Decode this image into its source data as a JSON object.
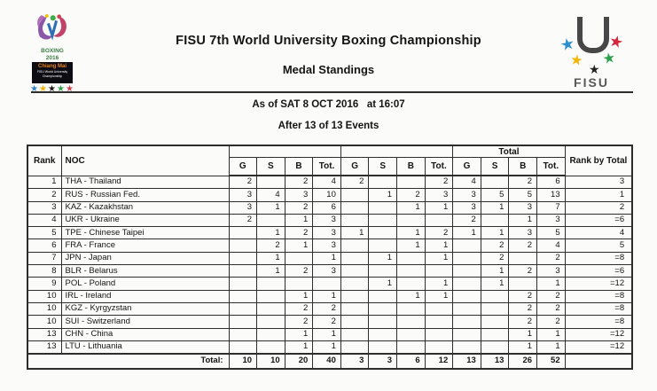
{
  "header": {
    "title": "FISU 7th World University Boxing Championship",
    "subtitle": "Medal Standings",
    "as_of": "As of SAT 8 OCT 2016   at 16:07",
    "after": "After 13 of 13 Events"
  },
  "boxing_logo": {
    "line1": "BOXING",
    "line2": "2016",
    "box_title": "Chiang Mai",
    "box_sub1": "FISU World University",
    "box_sub2": "Championship",
    "wordmark_color": "#3a7d44",
    "box_title_color": "#e8821e",
    "stars": [
      {
        "name": "blue",
        "glyph": "★",
        "color": "#2f7ec7"
      },
      {
        "name": "yellow",
        "glyph": "★",
        "color": "#f0b400"
      },
      {
        "name": "black",
        "glyph": "★",
        "color": "#1a1a1a"
      },
      {
        "name": "green",
        "glyph": "★",
        "color": "#2f9e4f"
      },
      {
        "name": "red",
        "glyph": "★",
        "color": "#d2404f"
      }
    ]
  },
  "fisu_logo": {
    "wordmark": "FISU",
    "stars": {
      "blue": {
        "glyph": "★",
        "color": "#2b8fd0"
      },
      "red": {
        "glyph": "★",
        "color": "#d6263e"
      },
      "yellow": {
        "glyph": "★",
        "color": "#f2b705"
      },
      "green": {
        "glyph": "★",
        "color": "#2aa24c"
      },
      "black": {
        "glyph": "★",
        "color": "#222222"
      }
    }
  },
  "table": {
    "col_headers": {
      "rank": "Rank",
      "noc": "NOC",
      "group1_label": "",
      "group2_label": "",
      "group3_label": "Total",
      "medal": [
        "G",
        "S",
        "B",
        "Tot."
      ],
      "rank_by_total": "Rank by Total"
    },
    "rows": [
      {
        "rank": "1",
        "noc": "THA - Thailand",
        "values": [
          "2",
          "",
          "2",
          "4",
          "2",
          "",
          "",
          "2",
          "4",
          "",
          "2",
          "6"
        ],
        "rank_by_total": "3"
      },
      {
        "rank": "2",
        "noc": "RUS - Russian Fed.",
        "values": [
          "3",
          "4",
          "3",
          "10",
          "",
          "1",
          "2",
          "3",
          "3",
          "5",
          "5",
          "13"
        ],
        "rank_by_total": "1"
      },
      {
        "rank": "3",
        "noc": "KAZ - Kazakhstan",
        "values": [
          "3",
          "1",
          "2",
          "6",
          "",
          "",
          "1",
          "1",
          "3",
          "1",
          "3",
          "7"
        ],
        "rank_by_total": "2"
      },
      {
        "rank": "4",
        "noc": "UKR - Ukraine",
        "values": [
          "2",
          "",
          "1",
          "3",
          "",
          "",
          "",
          "",
          "2",
          "",
          "1",
          "3"
        ],
        "rank_by_total": "=6"
      },
      {
        "rank": "5",
        "noc": "TPE - Chinese Taipei",
        "values": [
          "",
          "1",
          "2",
          "3",
          "1",
          "",
          "1",
          "2",
          "1",
          "1",
          "3",
          "5"
        ],
        "rank_by_total": "4"
      },
      {
        "rank": "6",
        "noc": "FRA - France",
        "values": [
          "",
          "2",
          "1",
          "3",
          "",
          "",
          "1",
          "1",
          "",
          "2",
          "2",
          "4"
        ],
        "rank_by_total": "5"
      },
      {
        "rank": "7",
        "noc": "JPN - Japan",
        "values": [
          "",
          "1",
          "",
          "1",
          "",
          "1",
          "",
          "1",
          "",
          "2",
          "",
          "2"
        ],
        "rank_by_total": "=8"
      },
      {
        "rank": "8",
        "noc": "BLR - Belarus",
        "values": [
          "",
          "1",
          "2",
          "3",
          "",
          "",
          "",
          "",
          "",
          "1",
          "2",
          "3"
        ],
        "rank_by_total": "=6"
      },
      {
        "rank": "9",
        "noc": "POL - Poland",
        "values": [
          "",
          "",
          "",
          "",
          "",
          "1",
          "",
          "1",
          "",
          "1",
          "",
          "1"
        ],
        "rank_by_total": "=12"
      },
      {
        "rank": "10",
        "noc": "IRL - Ireland",
        "values": [
          "",
          "",
          "1",
          "1",
          "",
          "",
          "1",
          "1",
          "",
          "",
          "2",
          "2"
        ],
        "rank_by_total": "=8"
      },
      {
        "rank": "10",
        "noc": "KGZ - Kyrgyzstan",
        "values": [
          "",
          "",
          "2",
          "2",
          "",
          "",
          "",
          "",
          "",
          "",
          "2",
          "2"
        ],
        "rank_by_total": "=8"
      },
      {
        "rank": "10",
        "noc": "SUI - Switzerland",
        "values": [
          "",
          "",
          "2",
          "2",
          "",
          "",
          "",
          "",
          "",
          "",
          "2",
          "2"
        ],
        "rank_by_total": "=8"
      },
      {
        "rank": "13",
        "noc": "CHN - China",
        "values": [
          "",
          "",
          "1",
          "1",
          "",
          "",
          "",
          "",
          "",
          "",
          "1",
          "1"
        ],
        "rank_by_total": "=12"
      },
      {
        "rank": "13",
        "noc": "LTU - Lithuania",
        "values": [
          "",
          "",
          "1",
          "1",
          "",
          "",
          "",
          "",
          "",
          "",
          "1",
          "1"
        ],
        "rank_by_total": "=12"
      }
    ],
    "total_row": {
      "label": "Total:",
      "values": [
        "10",
        "10",
        "20",
        "40",
        "3",
        "3",
        "6",
        "12",
        "13",
        "13",
        "26",
        "52"
      ],
      "rank_by_total": ""
    }
  }
}
